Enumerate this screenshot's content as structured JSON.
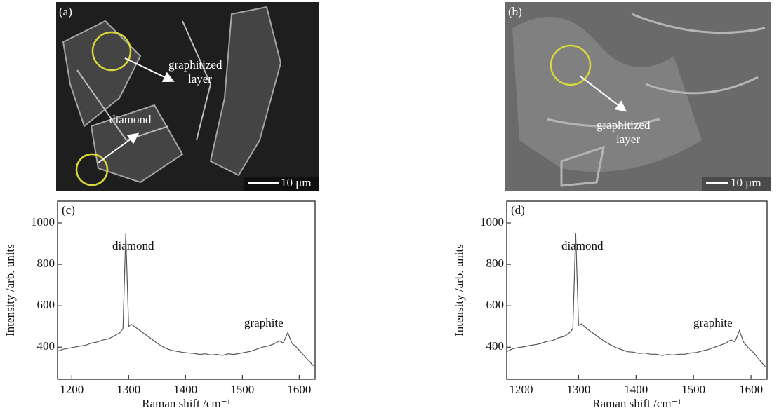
{
  "images": [
    {
      "label": "(a)",
      "annotations": [
        "graphitized",
        "layer",
        "diamond"
      ],
      "scale_bar": "10 μm"
    },
    {
      "label": "(b)",
      "annotations": [
        "graphitized",
        "layer"
      ],
      "scale_bar": "10 μm"
    }
  ],
  "chart_data": [
    {
      "type": "line",
      "panel_label": "(c)",
      "xlabel": "Raman shift /cm⁻¹",
      "ylabel": "Intensity /arb. units",
      "annotations": [
        "diamond",
        "graphite"
      ],
      "color": "#555555",
      "x": [
        1175,
        1185,
        1195,
        1205,
        1215,
        1225,
        1235,
        1245,
        1255,
        1265,
        1275,
        1285,
        1290,
        1295,
        1300,
        1305,
        1315,
        1325,
        1335,
        1345,
        1355,
        1365,
        1375,
        1385,
        1395,
        1405,
        1415,
        1425,
        1435,
        1445,
        1455,
        1465,
        1475,
        1485,
        1495,
        1505,
        1515,
        1525,
        1535,
        1545,
        1555,
        1565,
        1572,
        1580,
        1587,
        1595,
        1605,
        1615,
        1625
      ],
      "values": [
        380,
        390,
        395,
        400,
        405,
        410,
        420,
        425,
        435,
        440,
        455,
        470,
        490,
        950,
        500,
        510,
        490,
        470,
        450,
        430,
        410,
        395,
        385,
        380,
        375,
        372,
        370,
        365,
        368,
        362,
        365,
        360,
        368,
        365,
        370,
        375,
        380,
        390,
        400,
        405,
        415,
        430,
        420,
        470,
        420,
        400,
        370,
        340,
        310
      ],
      "xlim": [
        1175,
        1628
      ],
      "ylim": [
        245,
        1105
      ],
      "xticks": [
        1200,
        1300,
        1400,
        1500,
        1600
      ],
      "yticks": [
        400,
        600,
        800,
        1000
      ]
    },
    {
      "type": "line",
      "panel_label": "(d)",
      "xlabel": "Raman shift /cm⁻¹",
      "ylabel": "Intensity /arb. units",
      "annotations": [
        "diamond",
        "graphite"
      ],
      "color": "#555555",
      "x": [
        1175,
        1185,
        1195,
        1205,
        1215,
        1225,
        1235,
        1245,
        1255,
        1265,
        1275,
        1285,
        1290,
        1295,
        1300,
        1305,
        1315,
        1325,
        1335,
        1345,
        1355,
        1365,
        1375,
        1385,
        1395,
        1405,
        1415,
        1425,
        1435,
        1445,
        1455,
        1465,
        1475,
        1485,
        1495,
        1505,
        1515,
        1525,
        1535,
        1545,
        1555,
        1565,
        1572,
        1580,
        1587,
        1595,
        1605,
        1615,
        1625
      ],
      "values": [
        378,
        392,
        398,
        402,
        408,
        412,
        418,
        428,
        432,
        445,
        452,
        472,
        488,
        950,
        505,
        512,
        488,
        468,
        448,
        428,
        412,
        398,
        388,
        378,
        376,
        370,
        372,
        366,
        366,
        360,
        364,
        362,
        366,
        366,
        372,
        374,
        382,
        388,
        398,
        408,
        418,
        435,
        425,
        480,
        425,
        398,
        372,
        338,
        305
      ],
      "xlim": [
        1175,
        1628
      ],
      "ylim": [
        245,
        1105
      ],
      "xticks": [
        1200,
        1300,
        1400,
        1500,
        1600
      ],
      "yticks": [
        400,
        600,
        800,
        1000
      ]
    }
  ]
}
